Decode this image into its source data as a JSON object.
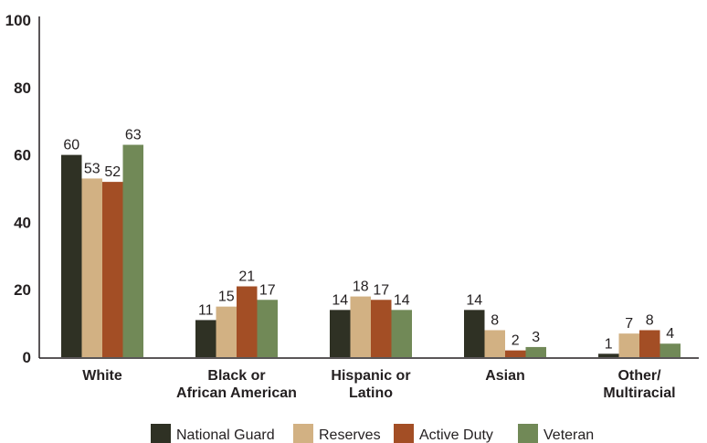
{
  "chart_data": {
    "type": "bar",
    "title": "",
    "xlabel": "",
    "ylabel": "",
    "ylim": [
      0,
      100
    ],
    "yticks": [
      0,
      20,
      40,
      60,
      80,
      100
    ],
    "grid": false,
    "legend_position": "bottom",
    "categories": [
      [
        "White"
      ],
      [
        "Black or",
        "African American"
      ],
      [
        "Hispanic or",
        "Latino"
      ],
      [
        "Asian"
      ],
      [
        "Other/",
        "Multiracial"
      ]
    ],
    "series": [
      {
        "name": "National Guard",
        "color": "#2f3124",
        "values": [
          60,
          11,
          14,
          14,
          1
        ]
      },
      {
        "name": "Reserves",
        "color": "#d2b183",
        "values": [
          53,
          15,
          18,
          8,
          7
        ]
      },
      {
        "name": "Active Duty",
        "color": "#a34e25",
        "values": [
          52,
          21,
          17,
          2,
          8
        ]
      },
      {
        "name": "Veteran",
        "color": "#718957",
        "values": [
          63,
          17,
          14,
          3,
          4
        ]
      }
    ]
  }
}
